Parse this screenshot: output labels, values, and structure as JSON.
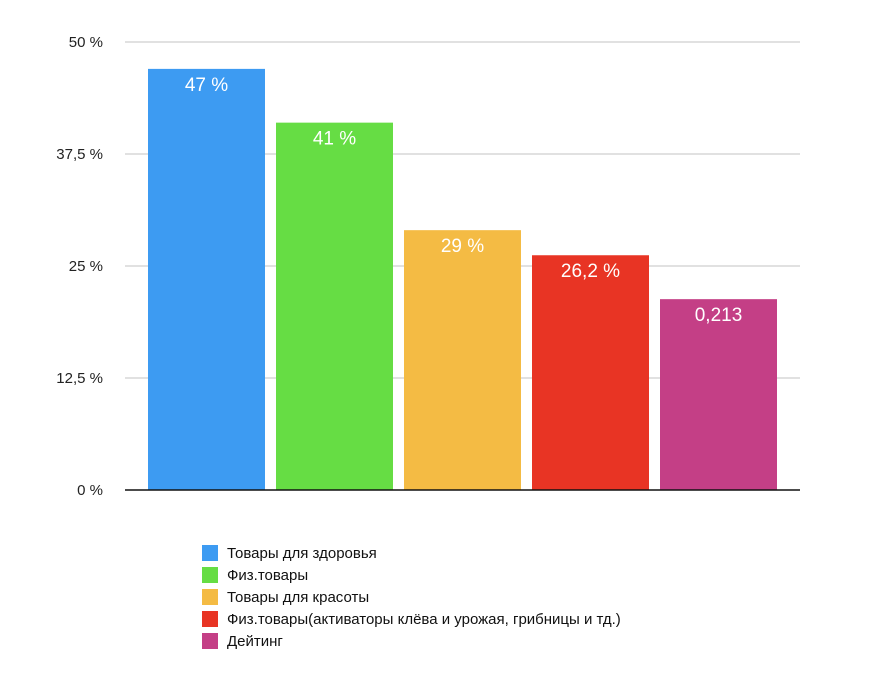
{
  "chart_data": {
    "type": "bar",
    "title": "",
    "xlabel": "",
    "ylabel": "",
    "ylim": [
      0,
      50
    ],
    "grid": true,
    "legend_placement": "bottom",
    "yticks": [
      {
        "value": 0,
        "label": "0 %"
      },
      {
        "value": 12.5,
        "label": "12,5 %"
      },
      {
        "value": 25,
        "label": "25 %"
      },
      {
        "value": 37.5,
        "label": "37,5 %"
      },
      {
        "value": 50,
        "label": "50 %"
      }
    ],
    "series": [
      {
        "name": "Товары для здоровья",
        "value": 47,
        "label": "47 %",
        "color": "#3d9bf2"
      },
      {
        "name": "Физ.товары",
        "value": 41,
        "label": "41 %",
        "color": "#66dd44"
      },
      {
        "name": "Товары для красоты",
        "value": 29,
        "label": "29 %",
        "color": "#f4bb44"
      },
      {
        "name": "Физ.товары(активаторы клёва и урожая, грибницы и тд.)",
        "value": 26.2,
        "label": "26,2 %",
        "color": "#e83424"
      },
      {
        "name": "Дейтинг",
        "value": 21.3,
        "label": "0,213",
        "color": "#c43f86"
      }
    ]
  }
}
